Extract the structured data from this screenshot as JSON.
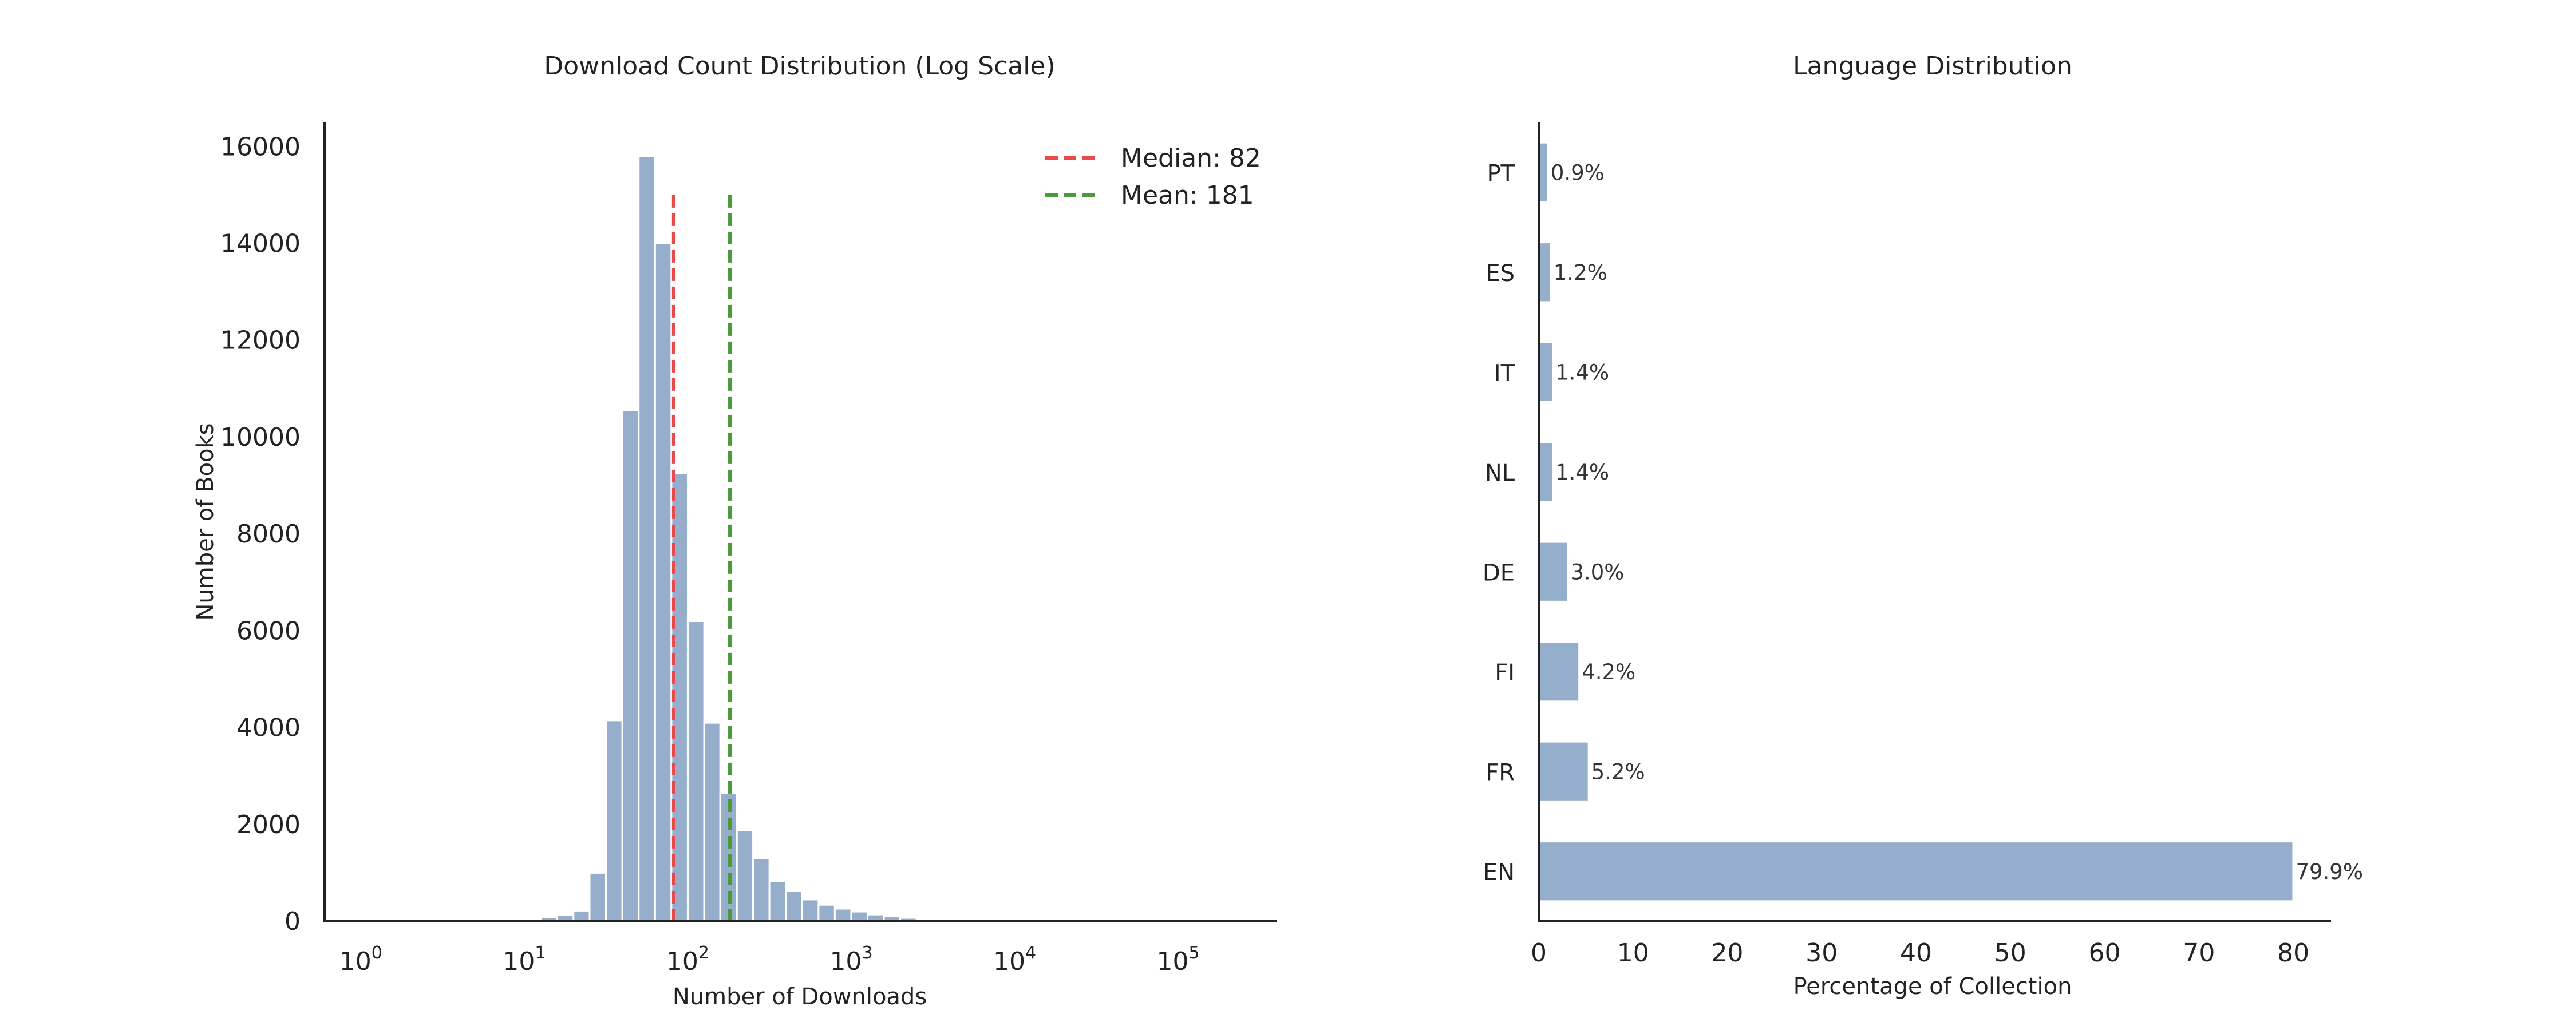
{
  "chart_data": [
    {
      "type": "bar",
      "title": "Download Count Distribution (Log Scale)",
      "xlabel": "Number of Downloads",
      "ylabel": "Number of Books",
      "x_scale": "log",
      "xlim": [
        0.6,
        400000
      ],
      "ylim": [
        0,
        16500
      ],
      "yticks": [
        0,
        2000,
        4000,
        6000,
        8000,
        10000,
        12000,
        14000,
        16000
      ],
      "xticks": [
        {
          "value": 1,
          "base": "10",
          "exp": "0"
        },
        {
          "value": 10,
          "base": "10",
          "exp": "1"
        },
        {
          "value": 100,
          "base": "10",
          "exp": "2"
        },
        {
          "value": 1000,
          "base": "10",
          "exp": "3"
        },
        {
          "value": 10000,
          "base": "10",
          "exp": "4"
        },
        {
          "value": 100000,
          "base": "10",
          "exp": "5"
        }
      ],
      "bins": [
        {
          "x0": 10,
          "x1": 12.6,
          "count": 40
        },
        {
          "x0": 12.6,
          "x1": 15.8,
          "count": 80
        },
        {
          "x0": 15.8,
          "x1": 20,
          "count": 130
        },
        {
          "x0": 20,
          "x1": 25.1,
          "count": 220
        },
        {
          "x0": 25.1,
          "x1": 31.6,
          "count": 1000
        },
        {
          "x0": 31.6,
          "x1": 39.8,
          "count": 4150
        },
        {
          "x0": 39.8,
          "x1": 50.1,
          "count": 10550
        },
        {
          "x0": 50.1,
          "x1": 63.1,
          "count": 15800
        },
        {
          "x0": 63.1,
          "x1": 79.4,
          "count": 14000
        },
        {
          "x0": 79.4,
          "x1": 100,
          "count": 9250
        },
        {
          "x0": 100,
          "x1": 126,
          "count": 6200
        },
        {
          "x0": 126,
          "x1": 158,
          "count": 4100
        },
        {
          "x0": 158,
          "x1": 200,
          "count": 2650
        },
        {
          "x0": 200,
          "x1": 251,
          "count": 1880
        },
        {
          "x0": 251,
          "x1": 316,
          "count": 1300
        },
        {
          "x0": 316,
          "x1": 398,
          "count": 830
        },
        {
          "x0": 398,
          "x1": 501,
          "count": 630
        },
        {
          "x0": 501,
          "x1": 631,
          "count": 450
        },
        {
          "x0": 631,
          "x1": 794,
          "count": 340
        },
        {
          "x0": 794,
          "x1": 1000,
          "count": 260
        },
        {
          "x0": 1000,
          "x1": 1259,
          "count": 200
        },
        {
          "x0": 1259,
          "x1": 1585,
          "count": 140
        },
        {
          "x0": 1585,
          "x1": 1995,
          "count": 100
        },
        {
          "x0": 1995,
          "x1": 2512,
          "count": 70
        },
        {
          "x0": 2512,
          "x1": 3162,
          "count": 50
        },
        {
          "x0": 3162,
          "x1": 3981,
          "count": 35
        },
        {
          "x0": 3981,
          "x1": 5012,
          "count": 25
        },
        {
          "x0": 5012,
          "x1": 6310,
          "count": 18
        },
        {
          "x0": 6310,
          "x1": 7943,
          "count": 12
        },
        {
          "x0": 7943,
          "x1": 10000,
          "count": 8
        }
      ],
      "lines": [
        {
          "label": "Median: 82",
          "x": 82,
          "y_top": 15000,
          "color": "#e84a4a"
        },
        {
          "label": "Mean: 181",
          "x": 181,
          "y_top": 15000,
          "color": "#4a9a3c"
        }
      ],
      "legend_position": "top-right",
      "bar_color": "#94aecb",
      "grid": false
    },
    {
      "type": "bar",
      "orientation": "horizontal",
      "title": "Language Distribution",
      "xlabel": "Percentage of Collection",
      "ylabel": "",
      "xlim": [
        0,
        84
      ],
      "xticks": [
        0,
        10,
        20,
        30,
        40,
        50,
        60,
        70,
        80
      ],
      "categories": [
        "EN",
        "FR",
        "FI",
        "DE",
        "NL",
        "IT",
        "ES",
        "PT"
      ],
      "values": [
        79.9,
        5.2,
        4.2,
        3.0,
        1.4,
        1.4,
        1.2,
        0.9
      ],
      "labels": [
        "79.9%",
        "5.2%",
        "4.2%",
        "3.0%",
        "1.4%",
        "1.4%",
        "1.2%",
        "0.9%"
      ],
      "bar_color": "#94aecb",
      "grid": false
    }
  ]
}
